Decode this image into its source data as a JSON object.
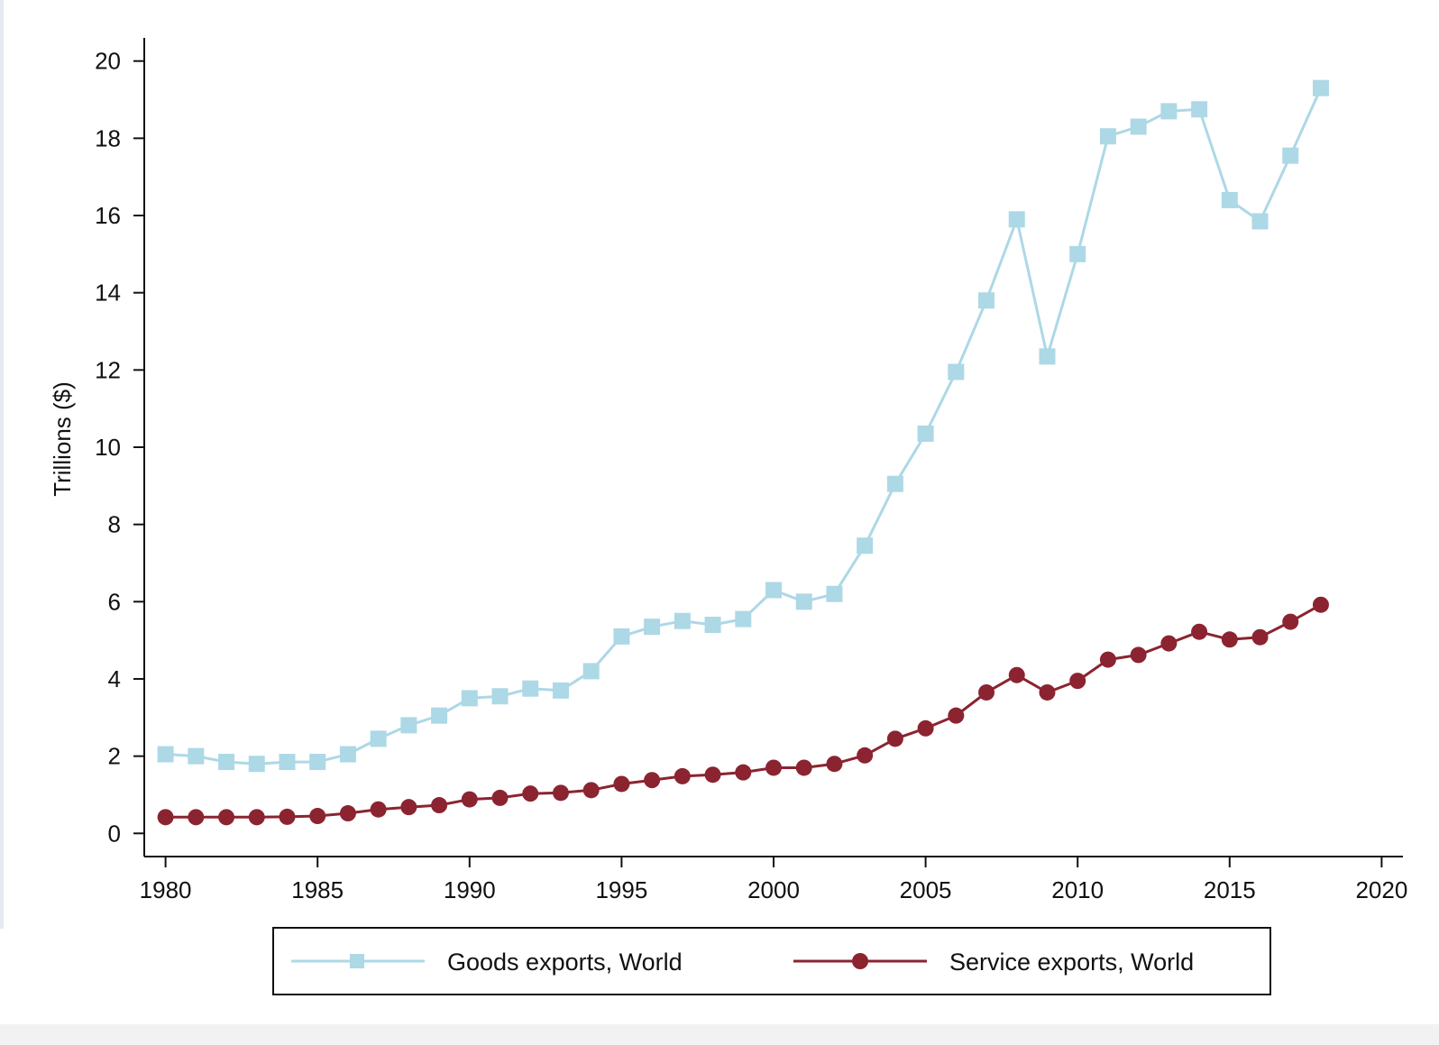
{
  "chart_data": {
    "type": "line",
    "title": "",
    "xlabel": "",
    "ylabel": "Trillions ($)",
    "xlim": [
      1979.3,
      2020.7
    ],
    "ylim": [
      -0.6,
      20.6
    ],
    "xticks": [
      1980,
      1985,
      1990,
      1995,
      2000,
      2005,
      2010,
      2015,
      2020
    ],
    "yticks": [
      0,
      2,
      4,
      6,
      8,
      10,
      12,
      14,
      16,
      18,
      20
    ],
    "grid": false,
    "legend_position": "bottom",
    "x": [
      1980,
      1981,
      1982,
      1983,
      1984,
      1985,
      1986,
      1987,
      1988,
      1989,
      1990,
      1991,
      1992,
      1993,
      1994,
      1995,
      1996,
      1997,
      1998,
      1999,
      2000,
      2001,
      2002,
      2003,
      2004,
      2005,
      2006,
      2007,
      2008,
      2009,
      2010,
      2011,
      2012,
      2013,
      2014,
      2015,
      2016,
      2017,
      2018
    ],
    "series": [
      {
        "name": "Goods exports, World",
        "color": "#add8e6",
        "marker": "square",
        "values": [
          2.05,
          2.0,
          1.85,
          1.8,
          1.85,
          1.85,
          2.05,
          2.45,
          2.8,
          3.05,
          3.5,
          3.55,
          3.75,
          3.7,
          4.2,
          5.1,
          5.35,
          5.5,
          5.4,
          5.55,
          6.3,
          6.0,
          6.2,
          7.45,
          9.05,
          10.35,
          11.95,
          13.8,
          15.9,
          12.35,
          15.0,
          18.05,
          18.3,
          18.7,
          18.75,
          16.4,
          15.85,
          17.55,
          19.3
        ]
      },
      {
        "name": "Service exports, World",
        "color": "#8b2430",
        "marker": "circle",
        "values": [
          0.42,
          0.42,
          0.42,
          0.42,
          0.43,
          0.45,
          0.52,
          0.62,
          0.68,
          0.73,
          0.88,
          0.92,
          1.03,
          1.05,
          1.12,
          1.28,
          1.38,
          1.48,
          1.52,
          1.58,
          1.7,
          1.7,
          1.8,
          2.02,
          2.45,
          2.72,
          3.05,
          3.65,
          4.1,
          3.65,
          3.95,
          4.5,
          4.62,
          4.92,
          5.22,
          5.02,
          5.08,
          5.48,
          5.92
        ]
      }
    ]
  }
}
